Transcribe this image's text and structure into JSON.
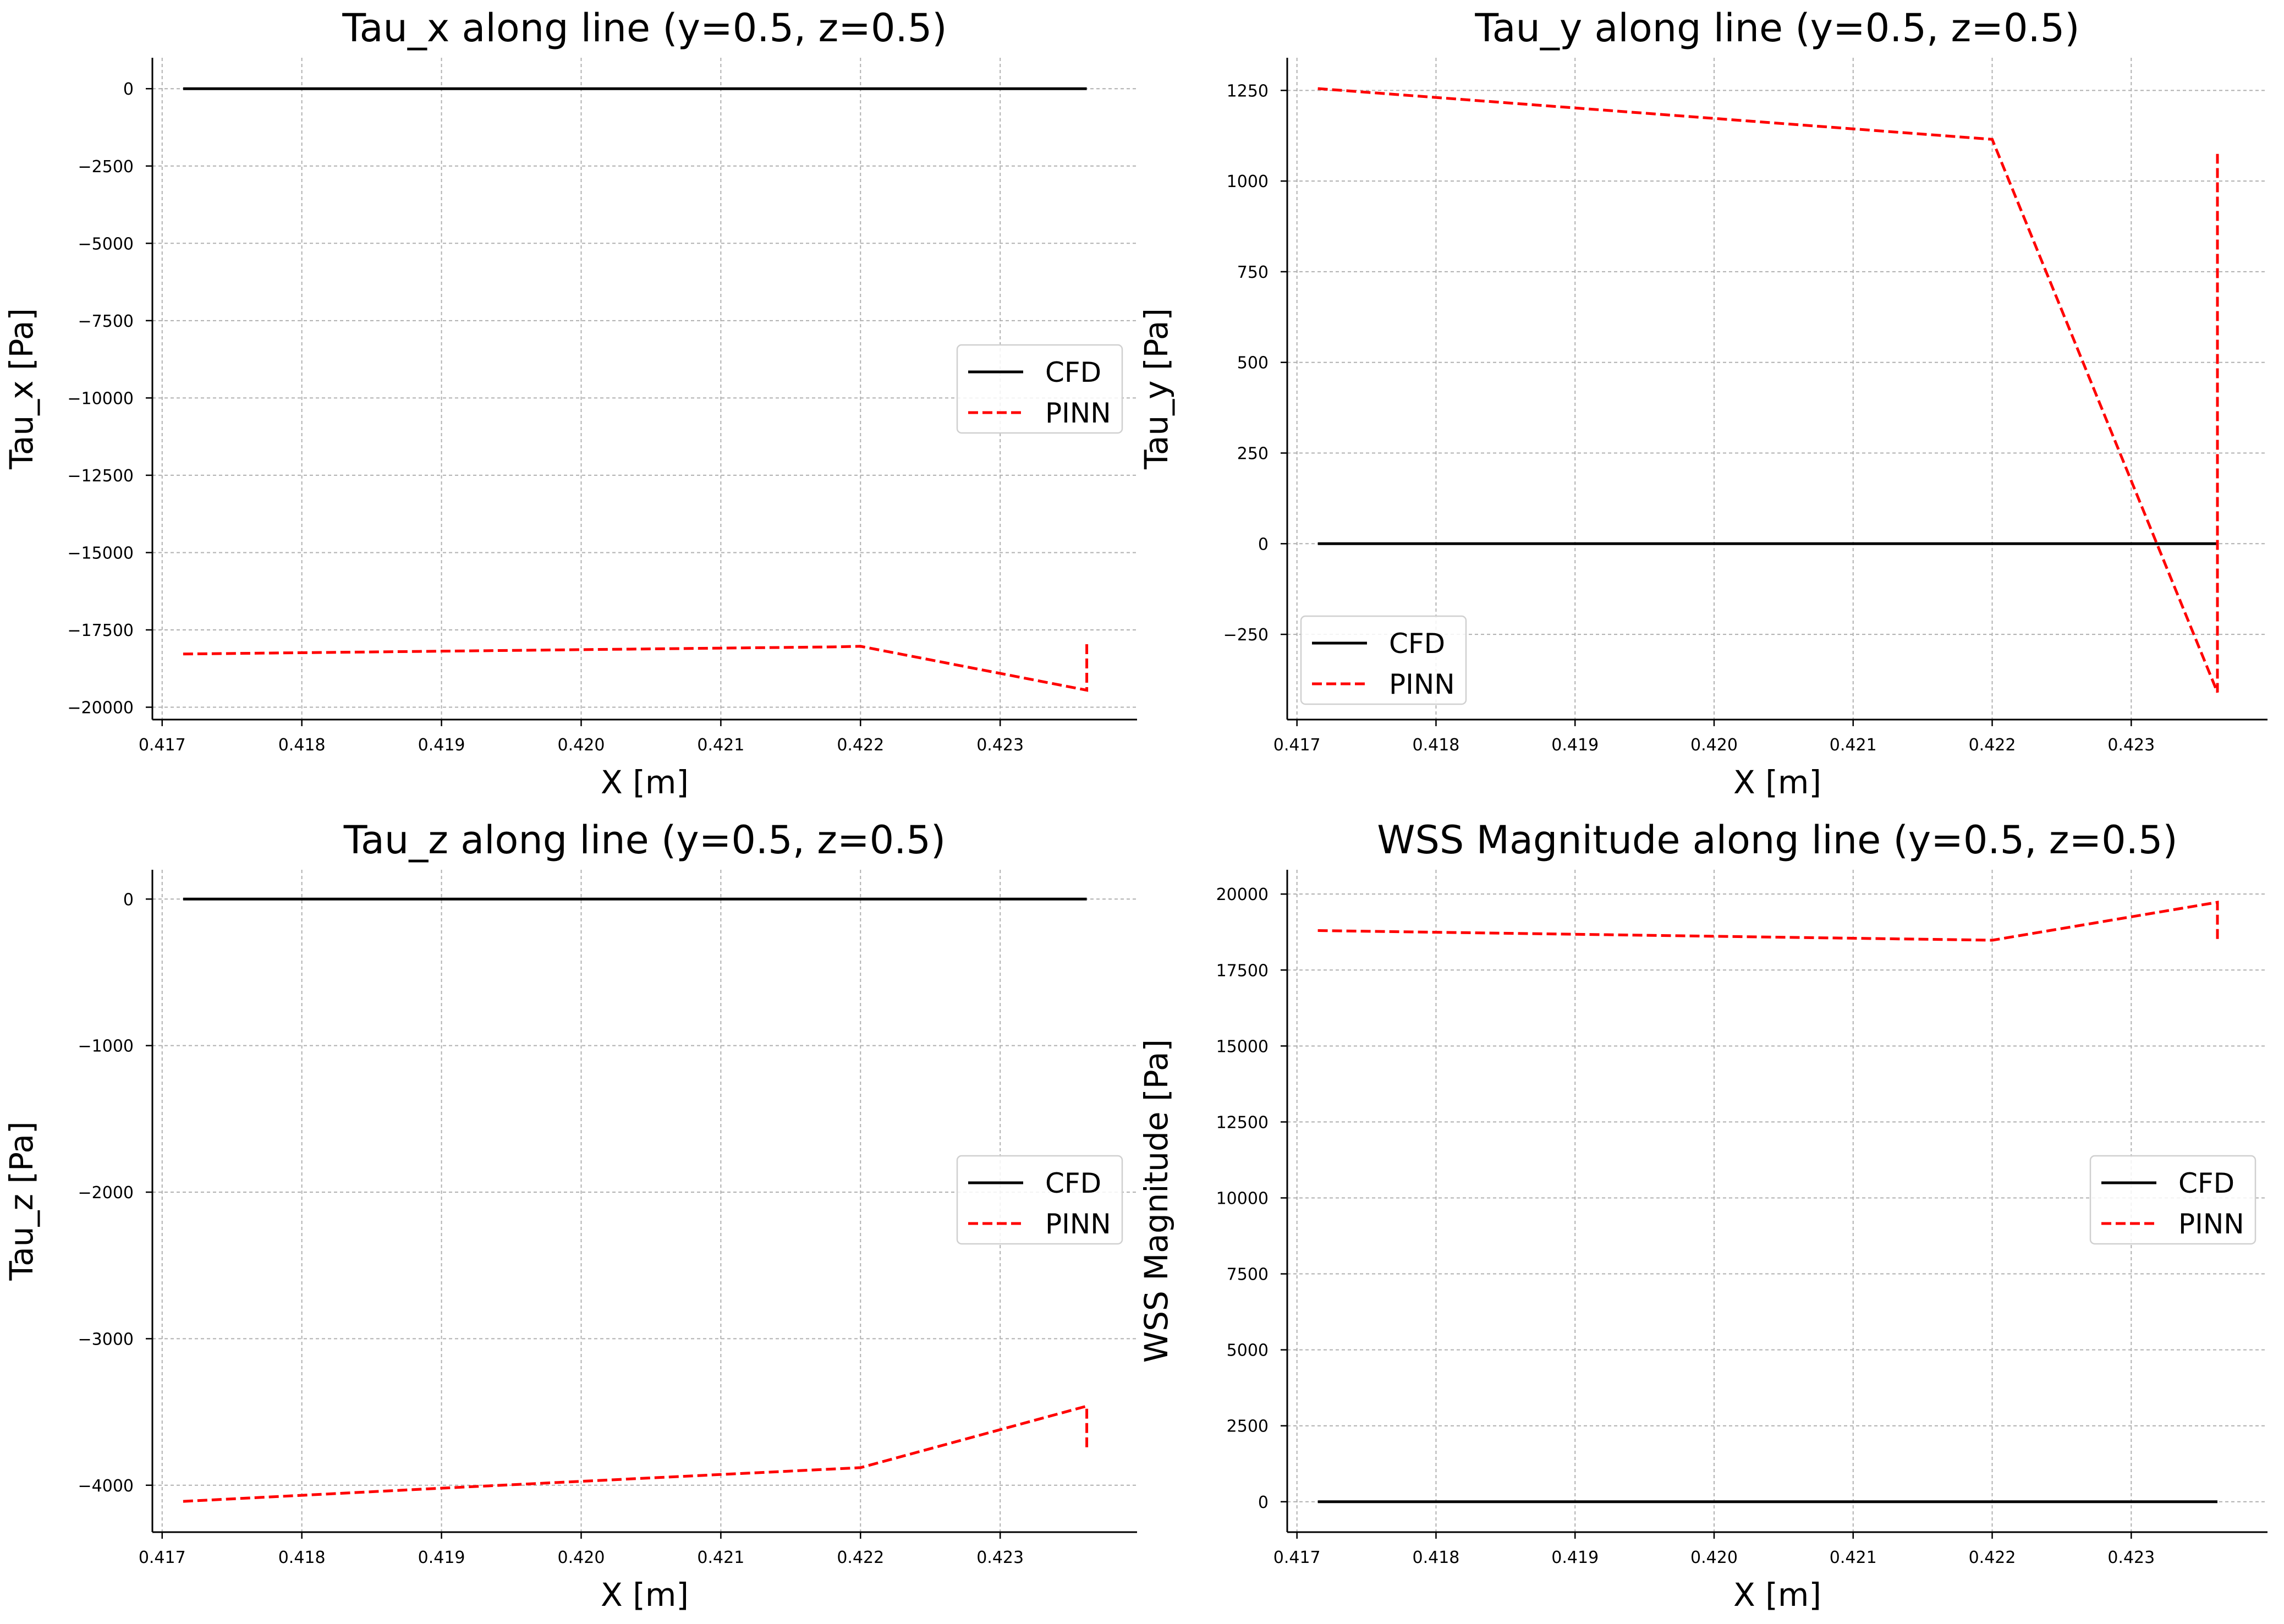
{
  "chart_data": [
    {
      "type": "line",
      "title": "Tau_x along line (y=0.5, z=0.5)",
      "xlabel": "X [m]",
      "ylabel": "Tau_x [Pa]",
      "xlim": [
        0.41693,
        0.42398
      ],
      "ylim": [
        -20400,
        1000
      ],
      "xticks": [
        0.417,
        0.418,
        0.419,
        0.42,
        0.421,
        0.422,
        0.423
      ],
      "xtick_labels": [
        "0.417",
        "0.418",
        "0.419",
        "0.420",
        "0.421",
        "0.422",
        "0.423"
      ],
      "yticks": [
        0,
        -2500,
        -5000,
        -7500,
        -10000,
        -12500,
        -15000,
        -17500,
        -20000
      ],
      "ytick_labels": [
        "0",
        "−2500",
        "−5000",
        "−7500",
        "−10000",
        "−12500",
        "−15000",
        "−17500",
        "−20000"
      ],
      "grid": true,
      "legend_position": "center-right",
      "series": [
        {
          "name": "CFD",
          "color": "#000000",
          "style": "solid",
          "x": [
            0.41715,
            0.42362
          ],
          "y": [
            0,
            0
          ]
        },
        {
          "name": "PINN",
          "color": "#ff0000",
          "style": "dashed",
          "x": [
            0.41715,
            0.4218,
            0.422,
            0.42362,
            0.42362
          ],
          "y": [
            -18280,
            -18050,
            -18030,
            -19450,
            -17850
          ]
        }
      ]
    },
    {
      "type": "line",
      "title": "Tau_y along line (y=0.5, z=0.5)",
      "xlabel": "X [m]",
      "ylabel": "Tau_y [Pa]",
      "xlim": [
        0.41693,
        0.42398
      ],
      "ylim": [
        -485,
        1340
      ],
      "xticks": [
        0.417,
        0.418,
        0.419,
        0.42,
        0.421,
        0.422,
        0.423
      ],
      "xtick_labels": [
        "0.417",
        "0.418",
        "0.419",
        "0.420",
        "0.421",
        "0.422",
        "0.423"
      ],
      "yticks": [
        1250,
        1000,
        750,
        500,
        250,
        0,
        -250
      ],
      "ytick_labels": [
        "1250",
        "1000",
        "750",
        "500",
        "250",
        "0",
        "−250"
      ],
      "grid": true,
      "legend_position": "lower-left",
      "series": [
        {
          "name": "CFD",
          "color": "#000000",
          "style": "solid",
          "x": [
            0.41715,
            0.42362
          ],
          "y": [
            0,
            0
          ]
        },
        {
          "name": "PINN",
          "color": "#ff0000",
          "style": "dashed",
          "x": [
            0.41715,
            0.422,
            0.42362,
            0.42362
          ],
          "y": [
            1255,
            1115,
            -410,
            1075
          ]
        }
      ]
    },
    {
      "type": "line",
      "title": "Tau_z along line (y=0.5, z=0.5)",
      "xlabel": "X [m]",
      "ylabel": "Tau_z [Pa]",
      "xlim": [
        0.41693,
        0.42398
      ],
      "ylim": [
        -4320,
        200
      ],
      "xticks": [
        0.417,
        0.418,
        0.419,
        0.42,
        0.421,
        0.422,
        0.423
      ],
      "xtick_labels": [
        "0.417",
        "0.418",
        "0.419",
        "0.420",
        "0.421",
        "0.422",
        "0.423"
      ],
      "yticks": [
        0,
        -1000,
        -2000,
        -3000,
        -4000
      ],
      "ytick_labels": [
        "0",
        "−1000",
        "−2000",
        "−3000",
        "−4000"
      ],
      "grid": true,
      "legend_position": "center-right",
      "series": [
        {
          "name": "CFD",
          "color": "#000000",
          "style": "solid",
          "x": [
            0.41715,
            0.42362
          ],
          "y": [
            0,
            0
          ]
        },
        {
          "name": "PINN",
          "color": "#ff0000",
          "style": "dashed",
          "x": [
            0.41715,
            0.419,
            0.422,
            0.42362,
            0.42362
          ],
          "y": [
            -4110,
            -4020,
            -3880,
            -3460,
            -3770
          ]
        }
      ]
    },
    {
      "type": "line",
      "title": "WSS Magnitude along line (y=0.5, z=0.5)",
      "xlabel": "X [m]",
      "ylabel": "WSS Magnitude [Pa]",
      "xlim": [
        0.41693,
        0.42398
      ],
      "ylim": [
        -1000,
        20800
      ],
      "xticks": [
        0.417,
        0.418,
        0.419,
        0.42,
        0.421,
        0.422,
        0.423
      ],
      "xtick_labels": [
        "0.417",
        "0.418",
        "0.419",
        "0.420",
        "0.421",
        "0.422",
        "0.423"
      ],
      "yticks": [
        20000,
        17500,
        15000,
        12500,
        10000,
        7500,
        5000,
        2500,
        0
      ],
      "ytick_labels": [
        "20000",
        "17500",
        "15000",
        "12500",
        "10000",
        "7500",
        "5000",
        "2500",
        "0"
      ],
      "grid": true,
      "legend_position": "center-right",
      "series": [
        {
          "name": "CFD",
          "color": "#000000",
          "style": "solid",
          "x": [
            0.41715,
            0.42362
          ],
          "y": [
            0,
            0
          ]
        },
        {
          "name": "PINN",
          "color": "#ff0000",
          "style": "dashed",
          "x": [
            0.41715,
            0.422,
            0.42362,
            0.42362
          ],
          "y": [
            18800,
            18480,
            19730,
            18380
          ]
        }
      ]
    }
  ]
}
